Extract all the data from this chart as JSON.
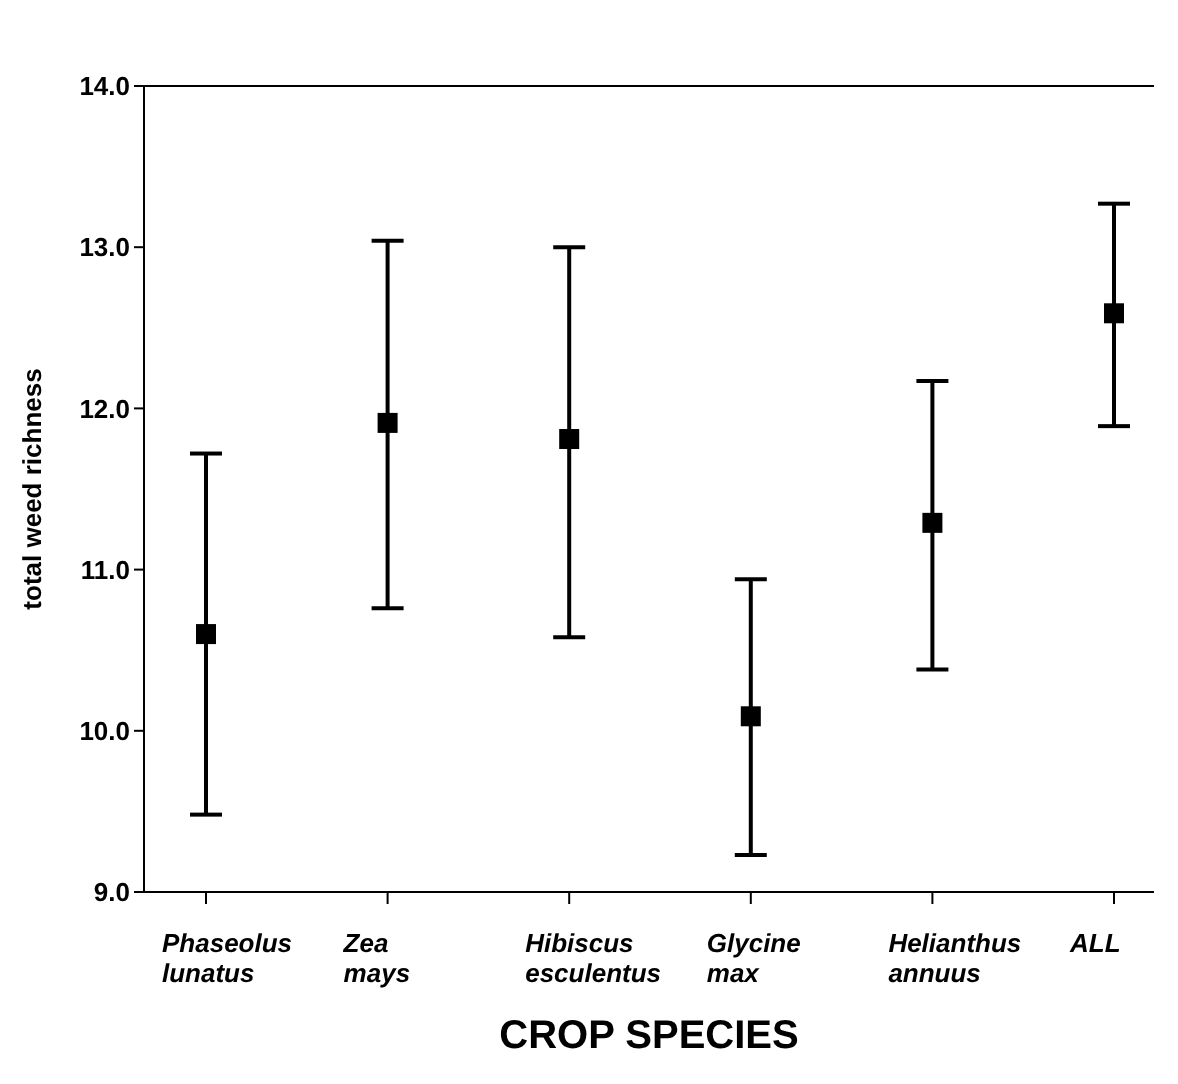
{
  "chart_data": {
    "type": "scatter",
    "xlabel": "CROP SPECIES",
    "ylabel": "total weed richness",
    "categories": [
      "Phaseolus lunatus",
      "Zea mays",
      "Hibiscus esculentus",
      "Glycine max",
      "Helianthus annuus",
      "ALL"
    ],
    "series": [
      {
        "color": "#000000",
        "values": [
          10.6,
          11.91,
          11.81,
          10.09,
          11.29,
          12.59
        ],
        "errors": [
          [
            9.48,
            11.72
          ],
          [
            10.76,
            13.04
          ],
          [
            10.58,
            13.0
          ],
          [
            9.23,
            10.94
          ],
          [
            10.38,
            12.17
          ],
          [
            11.89,
            13.27
          ]
        ]
      }
    ],
    "ylim": [
      9,
      14
    ],
    "yticks": [
      {
        "value": 9,
        "label": "9.0"
      },
      {
        "value": 10,
        "label": "10.0"
      },
      {
        "value": 11,
        "label": "11.0"
      },
      {
        "value": 12,
        "label": "12.0"
      },
      {
        "value": 13,
        "label": "13.0"
      },
      {
        "value": 14,
        "label": "14.0"
      }
    ],
    "marker": "square",
    "grid": false,
    "legend": false
  }
}
